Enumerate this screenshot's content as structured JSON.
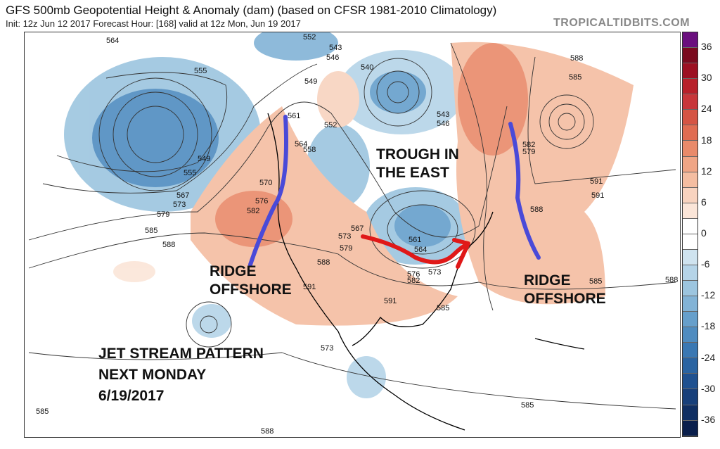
{
  "header": {
    "title": "GFS 500mb Geopotential Height & Anomaly (dam) (based on CFSR 1981-2010 Climatology)",
    "subtitle": "Init: 12z Jun 12 2017   Forecast Hour: [168]   valid at 12z Mon, Jun 19 2017",
    "brand": "TROPICALTIDBITS.COM"
  },
  "colorbar": {
    "ticks": [
      "36",
      "30",
      "24",
      "18",
      "12",
      "6",
      "0",
      "-6",
      "-12",
      "-18",
      "-24",
      "-30",
      "-36"
    ],
    "colors": [
      "#6a0f7e",
      "#7a0a1e",
      "#9c1022",
      "#b8202a",
      "#c8363a",
      "#d55444",
      "#e06c52",
      "#e98a6a",
      "#f0a585",
      "#f4bda1",
      "#f8d3bf",
      "#fbe5d8",
      "#ffffff",
      "#ffffff",
      "#cfe3ef",
      "#b5d4e8",
      "#9cc5df",
      "#82b3d6",
      "#669fcb",
      "#4f8cc0",
      "#3a78b3",
      "#2a64a2",
      "#1f5190",
      "#173f7a",
      "#0f2e62",
      "#0a1f4c"
    ]
  },
  "contour_labels": [
    "564",
    "555",
    "549",
    "555",
    "567",
    "573",
    "579",
    "585",
    "588",
    "552",
    "543",
    "546",
    "549",
    "540",
    "543",
    "546",
    "561",
    "564",
    "558",
    "552",
    "570",
    "576",
    "582",
    "579",
    "573",
    "567",
    "561",
    "564",
    "573",
    "576",
    "582",
    "585",
    "588",
    "591",
    "591",
    "573",
    "579",
    "582",
    "585",
    "588",
    "591",
    "588",
    "591",
    "585",
    "588",
    "585",
    "585",
    "588"
  ],
  "annotations": {
    "trough": [
      "TROUGH IN",
      "THE EAST"
    ],
    "ridge_west": [
      "RIDGE",
      "OFFSHORE"
    ],
    "ridge_east": [
      "RIDGE",
      "OFFSHORE"
    ],
    "caption": [
      "JET STREAM PATTERN",
      "NEXT MONDAY",
      "6/19/2017"
    ]
  },
  "colors": {
    "ridge_line": "#4a4ad8",
    "jet_arrow": "#e01818"
  }
}
